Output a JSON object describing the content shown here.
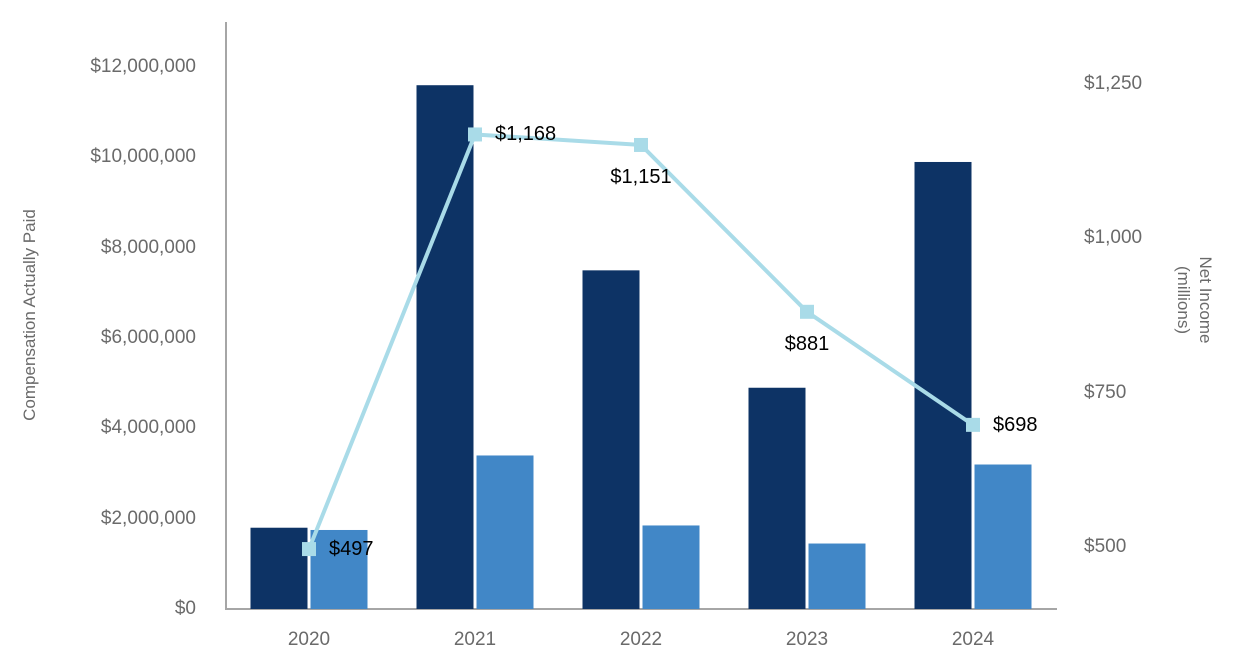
{
  "chart_data": {
    "type": "bar",
    "subtype": "combo-bar-line-dual-axis",
    "categories": [
      "2020",
      "2021",
      "2022",
      "2023",
      "2024"
    ],
    "series": [
      {
        "name": "bars-dark-navy",
        "type": "bar",
        "axis": "left",
        "color": "#0d3365",
        "values": [
          1800000,
          11600000,
          7500000,
          4900000,
          9900000
        ]
      },
      {
        "name": "bars-medium-blue",
        "type": "bar",
        "axis": "left",
        "color": "#4187c7",
        "values": [
          1750000,
          3400000,
          1850000,
          1450000,
          3200000
        ]
      },
      {
        "name": "net-income-line",
        "type": "line",
        "axis": "right",
        "color": "#a9dbe8",
        "marker": "square",
        "values": [
          497,
          1168,
          1151,
          881,
          698
        ],
        "labels": [
          "$497",
          "$1,168",
          "$1,151",
          "$881",
          "$698"
        ],
        "label_positions": [
          "right",
          "right",
          "below",
          "below",
          "right"
        ]
      }
    ],
    "left_axis": {
      "title": "Compensation Actually Paid",
      "ylim": [
        0,
        13000000
      ],
      "ticks": [
        {
          "label": "$0",
          "value": 0
        },
        {
          "label": "$2,000,000",
          "value": 2000000
        },
        {
          "label": "$4,000,000",
          "value": 4000000
        },
        {
          "label": "$6,000,000",
          "value": 6000000
        },
        {
          "label": "$8,000,000",
          "value": 8000000
        },
        {
          "label": "$10,000,000",
          "value": 10000000
        },
        {
          "label": "$12,000,000",
          "value": 12000000
        }
      ]
    },
    "right_axis": {
      "title_lines": [
        "Net Income",
        "(millions)"
      ],
      "ylim": [
        400,
        1350
      ],
      "ticks": [
        {
          "label": "$500",
          "value": 500
        },
        {
          "label": "$750",
          "value": 750
        },
        {
          "label": "$1,000",
          "value": 1000
        },
        {
          "label": "$1,250",
          "value": 1250
        }
      ]
    },
    "x_axis": {
      "labels": [
        "2020",
        "2021",
        "2022",
        "2023",
        "2024"
      ]
    },
    "title": "",
    "legend": "none",
    "grid": "off",
    "colors": {
      "axis_line": "#a6a6a6",
      "tick_text": "#6a6a6a",
      "data_label_text": "#000000",
      "background": "#ffffff"
    }
  }
}
